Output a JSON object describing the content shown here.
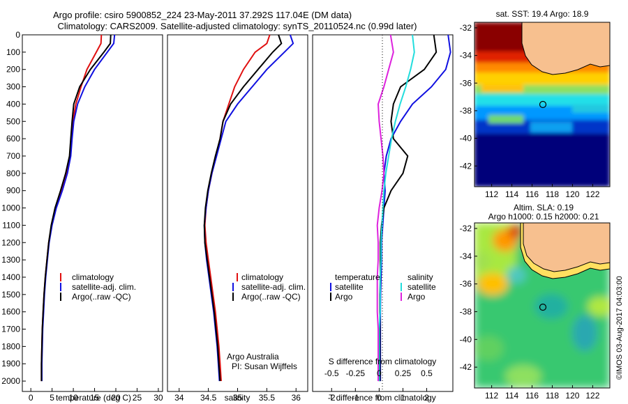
{
  "header": {
    "line1": "Argo profile: csiro 5900852_224 23-May-2011 37.292S 117.04E (DM data)",
    "line2": "Climatology: CARS2009. Satellite-adjusted climatology: synTS_20110524.nc (0.99d later)"
  },
  "colors": {
    "climatology": "#e01010",
    "satellite": "#1010e0",
    "argo": "#000000",
    "sat_salinity": "#22dddd",
    "argo_salinity": "#dd22dd",
    "land": "#f7c08f"
  },
  "chart_data": [
    {
      "type": "line",
      "panel": "temperature",
      "xlabel": "temperature (deg C)",
      "ylabel": "",
      "xlim": [
        -2,
        31
      ],
      "ylim": [
        2060,
        0
      ],
      "xticks": [
        "0",
        "5",
        "10",
        "15",
        "20",
        "25",
        "30"
      ],
      "yticks": [
        "0",
        "100",
        "200",
        "300",
        "400",
        "500",
        "600",
        "700",
        "800",
        "900",
        "1000",
        "1100",
        "1200",
        "1300",
        "1400",
        "1500",
        "1600",
        "1700",
        "1800",
        "1900",
        "2000"
      ],
      "legend": [
        "climatology",
        "satellite-adj. clim.",
        "Argo(..raw -QC)"
      ],
      "legend_position": "lower-right",
      "series": [
        {
          "name": "climatology",
          "x": [
            16.6,
            16.5,
            15.4,
            13.2,
            11.8,
            10.6,
            9.9,
            9.6,
            9.2,
            8.4,
            7.2,
            5.8,
            4.9,
            4.2,
            3.8,
            3.4,
            3.1,
            2.9,
            2.7,
            2.6,
            2.5,
            2.5
          ],
          "y": [
            0,
            50,
            100,
            200,
            300,
            400,
            500,
            600,
            700,
            800,
            900,
            1000,
            1100,
            1200,
            1300,
            1400,
            1500,
            1600,
            1700,
            1800,
            1900,
            2000
          ]
        },
        {
          "name": "satellite-adj. clim.",
          "x": [
            19.7,
            19.5,
            18.0,
            15.0,
            12.7,
            11.0,
            10.1,
            9.7,
            9.4,
            8.6,
            7.4,
            6.0,
            5.0,
            4.3,
            3.9,
            3.5,
            3.2,
            3.0,
            2.8,
            2.7,
            2.6,
            2.6
          ],
          "y": [
            0,
            50,
            100,
            200,
            300,
            400,
            500,
            600,
            700,
            800,
            900,
            1000,
            1100,
            1200,
            1300,
            1400,
            1500,
            1600,
            1700,
            1800,
            1900,
            2000
          ]
        },
        {
          "name": "Argo(..raw -QC)",
          "x": [
            18.8,
            18.7,
            17.2,
            14.0,
            11.5,
            10.1,
            9.7,
            9.4,
            9.1,
            8.2,
            7.0,
            5.7,
            4.8,
            4.2,
            3.8,
            3.4,
            3.1,
            2.9,
            2.7,
            2.6,
            2.5,
            2.5
          ],
          "y": [
            0,
            50,
            100,
            200,
            300,
            400,
            500,
            600,
            700,
            800,
            900,
            1000,
            1100,
            1200,
            1300,
            1400,
            1500,
            1600,
            1700,
            1800,
            1900,
            2000
          ]
        }
      ]
    },
    {
      "type": "line",
      "panel": "salinity",
      "xlabel": "salinity",
      "xlim": [
        33.8,
        36.2
      ],
      "ylim": [
        2060,
        0
      ],
      "xticks": [
        "34",
        "34.5",
        "35",
        "35.5",
        "36"
      ],
      "legend": [
        "climatology",
        "satellite-adj. clim.",
        "Argo(..raw -QC)"
      ],
      "legend_position": "lower-right",
      "annotation": [
        "Argo Australia",
        "PI: Susan Wijffels"
      ],
      "series": [
        {
          "name": "climatology",
          "x": [
            35.55,
            35.5,
            35.3,
            35.1,
            34.95,
            34.85,
            34.75,
            34.7,
            34.63,
            34.56,
            34.5,
            34.46,
            34.44,
            34.46,
            34.5,
            34.54,
            34.58,
            34.62,
            34.65,
            34.68,
            34.7,
            34.72
          ],
          "y": [
            0,
            50,
            100,
            200,
            300,
            400,
            500,
            600,
            700,
            800,
            900,
            1000,
            1100,
            1200,
            1300,
            1400,
            1500,
            1600,
            1700,
            1800,
            1900,
            2000
          ]
        },
        {
          "name": "satellite-adj. clim.",
          "x": [
            35.9,
            35.95,
            35.8,
            35.5,
            35.25,
            35.0,
            34.8,
            34.72,
            34.64,
            34.56,
            34.5,
            34.46,
            34.43,
            34.44,
            34.47,
            34.51,
            34.55,
            34.59,
            34.62,
            34.65,
            34.67,
            34.69
          ],
          "y": [
            0,
            50,
            100,
            200,
            300,
            400,
            500,
            600,
            700,
            800,
            900,
            1000,
            1100,
            1200,
            1300,
            1400,
            1500,
            1600,
            1700,
            1800,
            1900,
            2000
          ]
        },
        {
          "name": "Argo(..raw -QC)",
          "x": [
            35.7,
            35.75,
            35.6,
            35.35,
            35.1,
            34.88,
            34.75,
            34.7,
            34.62,
            34.55,
            34.49,
            34.45,
            34.43,
            34.44,
            34.48,
            34.52,
            34.56,
            34.6,
            34.63,
            34.66,
            34.68,
            34.7
          ],
          "y": [
            0,
            50,
            100,
            200,
            300,
            400,
            500,
            600,
            700,
            800,
            900,
            1000,
            1100,
            1200,
            1300,
            1400,
            1500,
            1600,
            1700,
            1800,
            1900,
            2000
          ]
        }
      ]
    },
    {
      "type": "line",
      "panel": "difference",
      "xlabel": "T difference from climatology",
      "xlabel_top": "S difference from climatology",
      "xlim": [
        -2.8,
        3.1
      ],
      "ylim": [
        2060,
        0
      ],
      "xticks": [
        "-2",
        "-1",
        "0",
        "1",
        "2"
      ],
      "xticks_top": [
        "-0.5",
        "-0.25",
        "0",
        "0.25",
        "0.5"
      ],
      "legend": {
        "temperature": [
          "satellite",
          "Argo"
        ],
        "salinity": [
          "satellite",
          "Argo"
        ]
      },
      "legend_headers": [
        "temperature",
        "salinity"
      ],
      "series": [
        {
          "name": "temperature satellite",
          "x": [
            2.9,
            3.0,
            2.8,
            2.2,
            1.4,
            0.9,
            0.5,
            0.3,
            0.2,
            0.25,
            0.2,
            0.15,
            0.1,
            0.1,
            0.08,
            0.06,
            0.05,
            0.05,
            0.05,
            0.05,
            0.05
          ],
          "y": [
            0,
            100,
            200,
            300,
            400,
            500,
            600,
            700,
            800,
            900,
            1000,
            1100,
            1200,
            1300,
            1400,
            1500,
            1600,
            1700,
            1800,
            1900,
            2000
          ]
        },
        {
          "name": "temperature Argo",
          "x": [
            2.3,
            2.4,
            1.9,
            0.9,
            0.6,
            0.5,
            0.6,
            1.2,
            1.0,
            0.5,
            0.2,
            0.1,
            0.05,
            0.05,
            0.05,
            0.03,
            0.03,
            0.03,
            0.03,
            0.03,
            0.03
          ],
          "y": [
            0,
            100,
            200,
            300,
            400,
            500,
            600,
            700,
            800,
            900,
            1000,
            1100,
            1200,
            1300,
            1400,
            1500,
            1600,
            1700,
            1800,
            1900,
            2000
          ]
        },
        {
          "name": "salinity satellite",
          "x": [
            0.35,
            0.37,
            0.33,
            0.28,
            0.22,
            0.17,
            0.13,
            0.1,
            0.07,
            0.05,
            0.04,
            0.03,
            0.02,
            0.02,
            0.01,
            0.01,
            0.01,
            0.0,
            0.0,
            0.0,
            0.0
          ],
          "y": [
            0,
            100,
            200,
            300,
            400,
            500,
            600,
            700,
            800,
            900,
            1000,
            1100,
            1200,
            1300,
            1400,
            1500,
            1600,
            1700,
            1800,
            1900,
            2000
          ]
        },
        {
          "name": "salinity Argo",
          "x": [
            0.12,
            0.15,
            0.1,
            0.05,
            -0.01,
            0.0,
            0.02,
            0.04,
            0.05,
            0.03,
            0.0,
            -0.02,
            -0.01,
            -0.01,
            -0.02,
            -0.02,
            -0.02,
            -0.01,
            -0.01,
            -0.01,
            -0.01
          ],
          "y": [
            0,
            100,
            200,
            300,
            400,
            500,
            600,
            700,
            800,
            900,
            1000,
            1100,
            1200,
            1300,
            1400,
            1500,
            1600,
            1700,
            1800,
            1900,
            2000
          ]
        }
      ]
    },
    {
      "type": "heatmap",
      "panel": "sst_map",
      "title": "sat. SST: 19.4  Argo: 18.9",
      "xlim": [
        110.3,
        123.7
      ],
      "ylim": [
        -43.5,
        -31.6
      ],
      "xticks": [
        "112",
        "114",
        "116",
        "118",
        "120",
        "122"
      ],
      "yticks": [
        "-32",
        "-34",
        "-36",
        "-38",
        "-40",
        "-42"
      ],
      "marker": {
        "lon": 117.04,
        "lat": -37.29
      }
    },
    {
      "type": "heatmap",
      "panel": "sla_map",
      "title": "Altim. SLA: 0.19",
      "subtitle": "Argo h1000: 0.15  h2000: 0.21",
      "xlim": [
        110.3,
        123.7
      ],
      "ylim": [
        -43.5,
        -31.6
      ],
      "xticks": [
        "112",
        "114",
        "116",
        "118",
        "120",
        "122"
      ],
      "yticks": [
        "-32",
        "-34",
        "-36",
        "-38",
        "-40",
        "-42"
      ],
      "marker": {
        "lon": 117.04,
        "lat": -37.29
      }
    }
  ],
  "footer": {
    "credit": "©IMOS 03-Aug-2017 04:03:00"
  }
}
